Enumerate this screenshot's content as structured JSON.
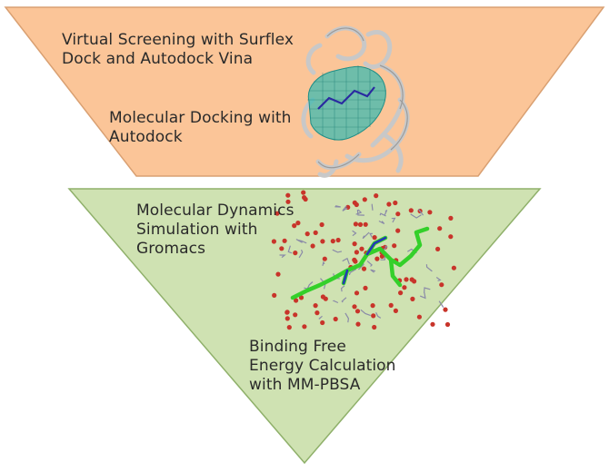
{
  "stages": [
    {
      "lines": [
        "Virtual Screening with Surflex",
        "Dock and Autodock Vina"
      ]
    },
    {
      "lines": [
        "Molecular Docking with",
        "Autodock"
      ]
    },
    {
      "lines": [
        "Molecular Dynamics",
        "Simulation with",
        "Gromacs"
      ]
    },
    {
      "lines": [
        "Binding Free",
        "Energy Calculation",
        "with MM-PBSA"
      ]
    }
  ],
  "colors": {
    "top_fill": "#fbc598",
    "top_stroke": "#d9a072",
    "bottom_fill": "#cfe2b2",
    "bottom_stroke": "#8fb06a",
    "protein_ribbon": "#c8c8c8",
    "ligand_mesh": "#3fb9b0",
    "ligand_stick": "#34d02a",
    "water": "#c8342a"
  },
  "icons": {
    "protein": "protein-ribbon-structure",
    "simulation": "md-simulation-box"
  }
}
